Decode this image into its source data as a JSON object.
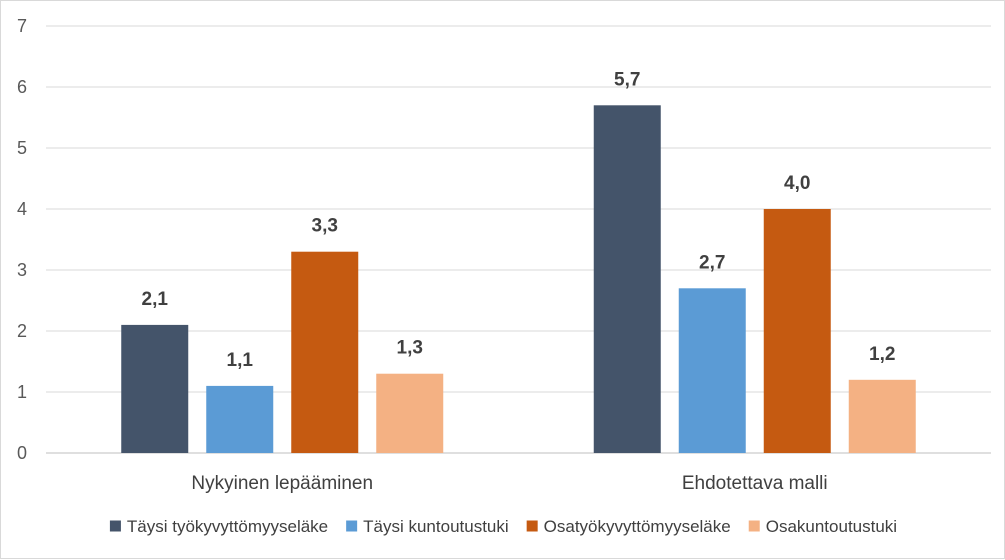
{
  "chart_data": {
    "type": "bar",
    "categories": [
      "Nykyinen lepääminen",
      "Ehdotettava malli"
    ],
    "series": [
      {
        "name": "Täysi työkyvyttömyyseläke",
        "color": "#44546a",
        "values": [
          2.1,
          5.7
        ],
        "labels": [
          "2,1",
          "5,7"
        ]
      },
      {
        "name": "Täysi kuntoutustuki",
        "color": "#5b9bd5",
        "values": [
          1.1,
          2.7
        ],
        "labels": [
          "1,1",
          "2,7"
        ]
      },
      {
        "name": "Osatyökyvyttömyyseläke",
        "color": "#c55a11",
        "values": [
          3.3,
          4.0
        ],
        "labels": [
          "3,3",
          "4,0"
        ]
      },
      {
        "name": "Osakuntoutustuki",
        "color": "#f4b183",
        "values": [
          1.3,
          1.2
        ],
        "labels": [
          "1,3",
          "1,2"
        ]
      }
    ],
    "ylim": [
      0,
      7
    ],
    "yticks": [
      "0",
      "1",
      "2",
      "3",
      "4",
      "5",
      "6",
      "7"
    ],
    "grid": true,
    "legend_position": "bottom",
    "title": "",
    "xlabel": "",
    "ylabel": ""
  }
}
